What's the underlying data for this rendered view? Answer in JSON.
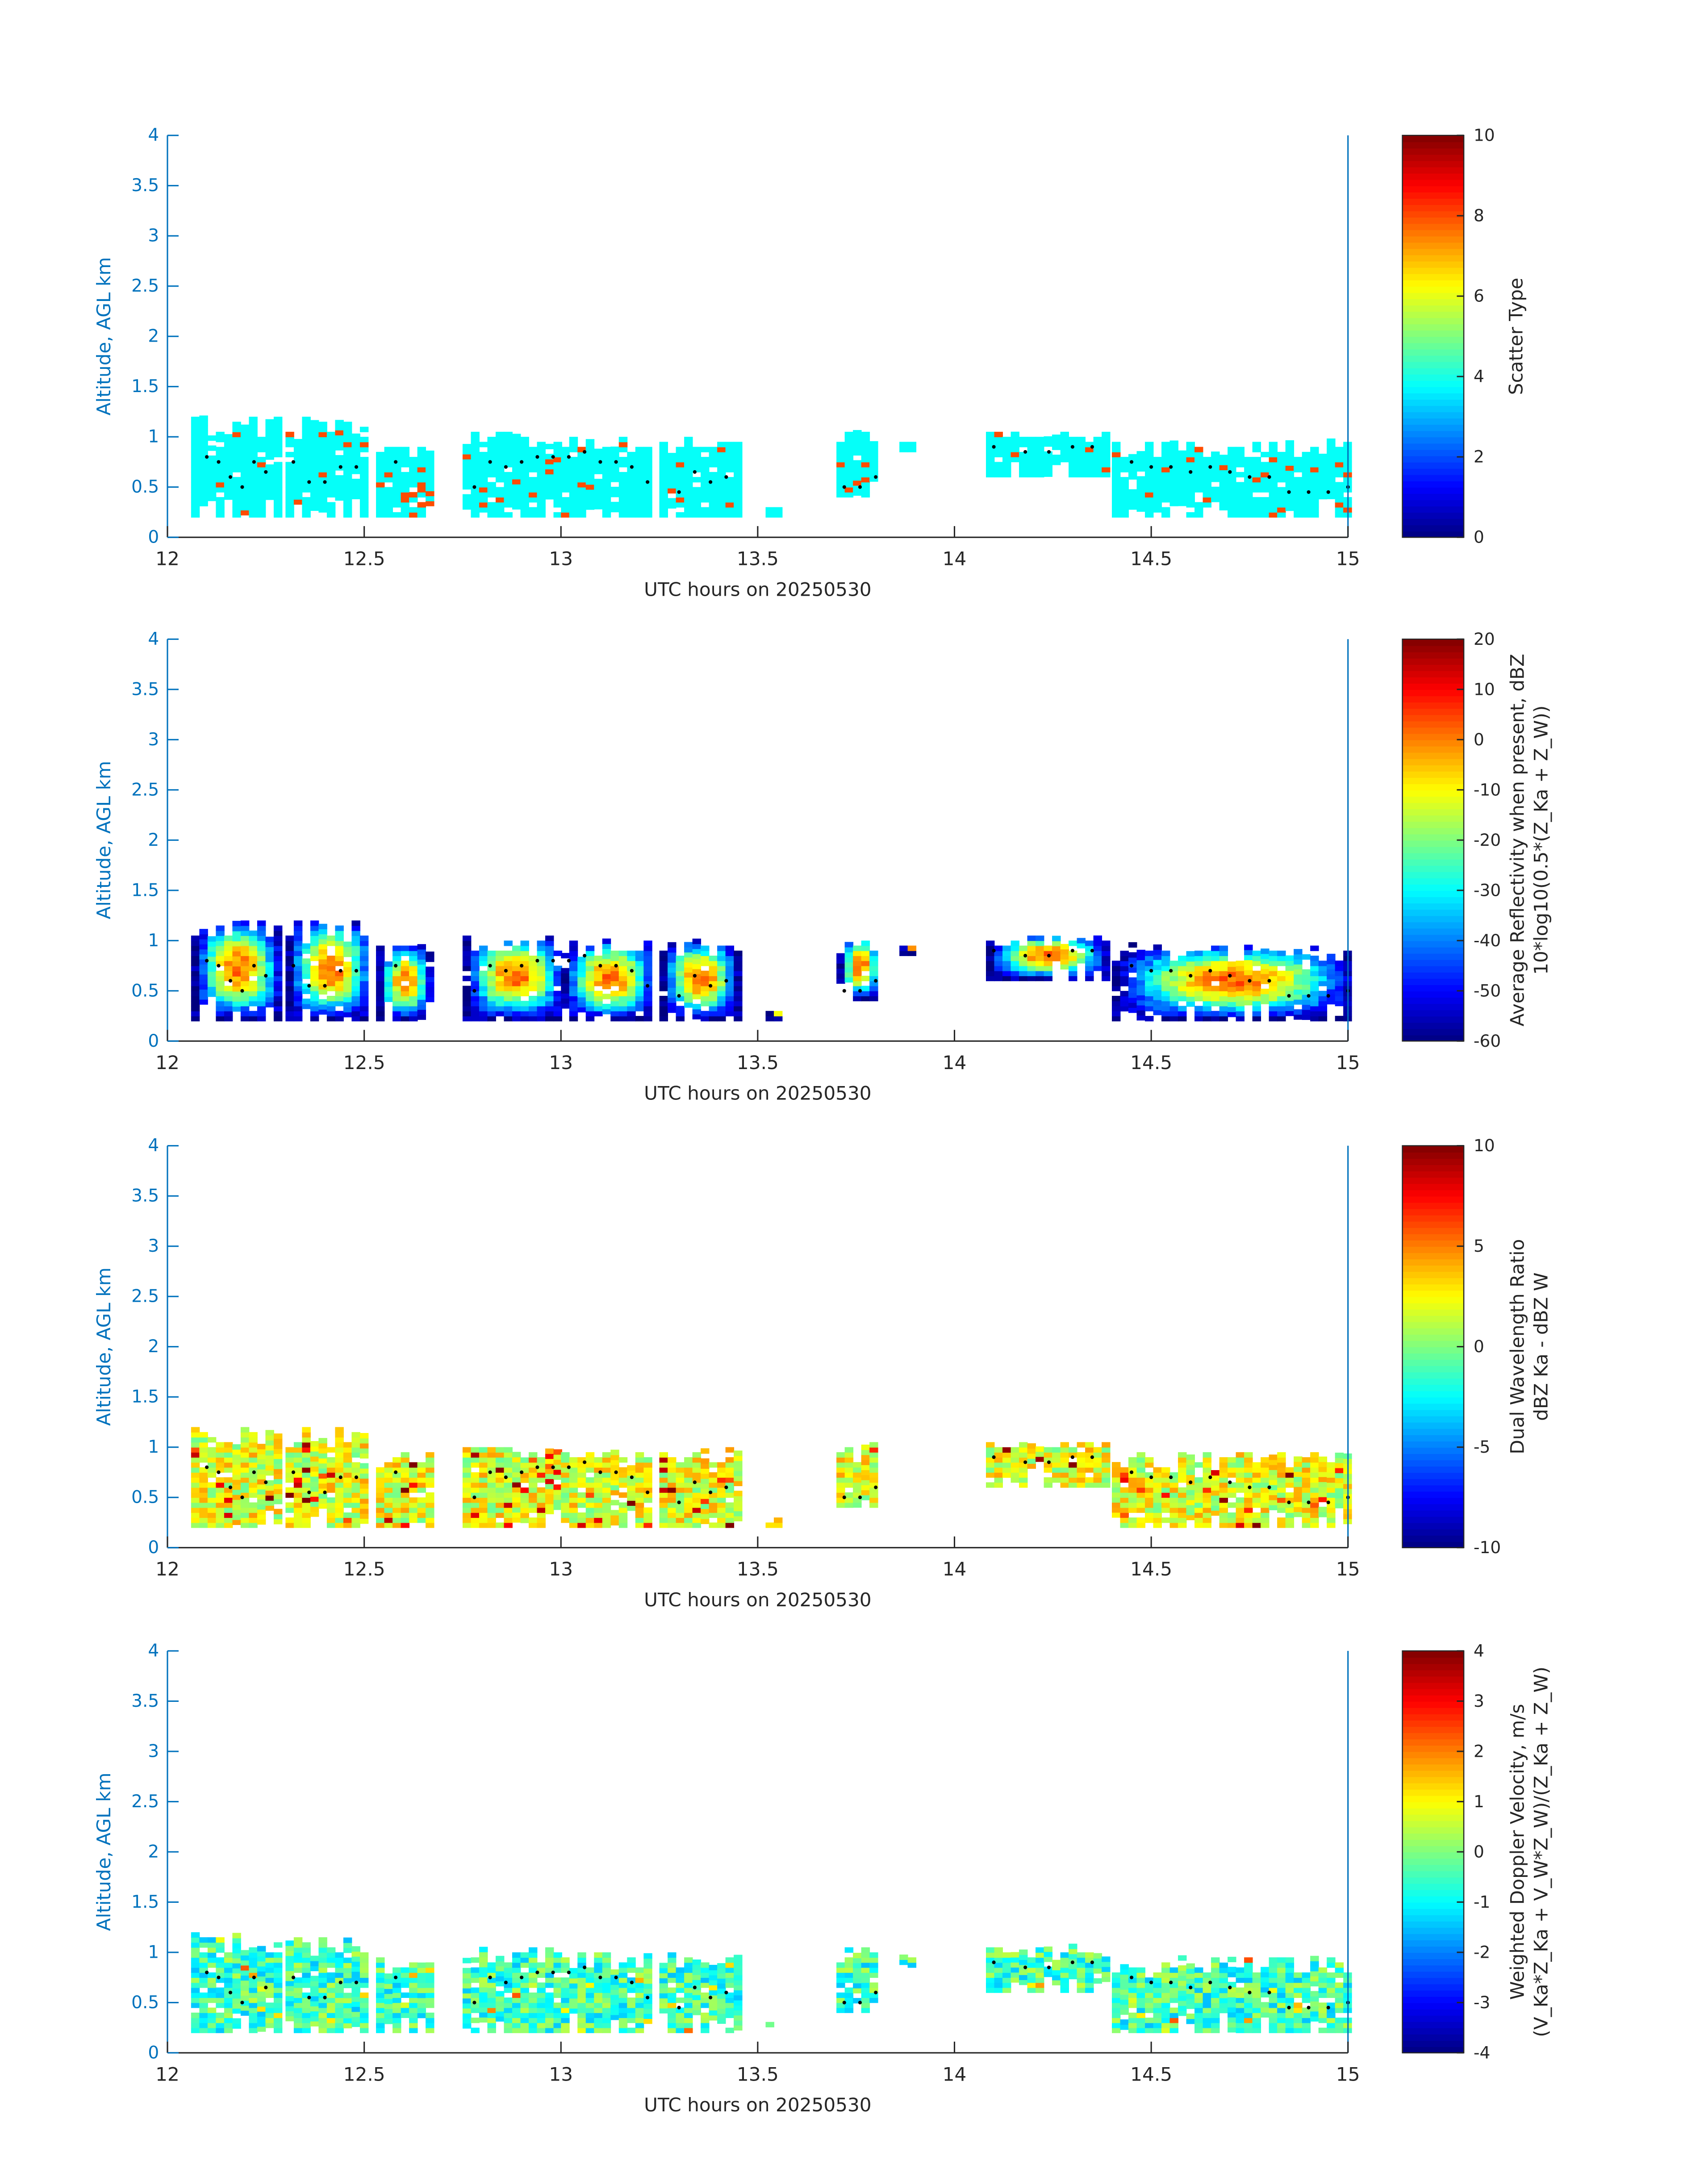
{
  "chart_data": [
    {
      "type": "heatmap",
      "xlabel": "UTC hours on 20250530",
      "ylabel": "Altitude, AGL km",
      "xlim": [
        12,
        15
      ],
      "ylim": [
        0,
        4
      ],
      "xticks": [
        "12",
        "12.5",
        "13",
        "13.5",
        "14",
        "14.5",
        "15"
      ],
      "yticks": [
        "0",
        "0.5",
        "1",
        "1.5",
        "2",
        "2.5",
        "3",
        "3.5",
        "4"
      ],
      "colorbar": {
        "label": [
          "Scatter Type"
        ],
        "clim": [
          0,
          10
        ],
        "ticks": [
          "0",
          "2",
          "4",
          "6",
          "8",
          "10"
        ]
      },
      "field": "scatter",
      "base": 3.8,
      "alt": 8
    },
    {
      "type": "heatmap",
      "xlabel": "UTC hours on 20250530",
      "ylabel": "Altitude, AGL km",
      "xlim": [
        12,
        15
      ],
      "ylim": [
        0,
        4
      ],
      "xticks": [
        "12",
        "12.5",
        "13",
        "13.5",
        "14",
        "14.5",
        "15"
      ],
      "yticks": [
        "0",
        "0.5",
        "1",
        "1.5",
        "2",
        "2.5",
        "3",
        "3.5",
        "4"
      ],
      "colorbar": {
        "label": [
          "Average Reflectivity when present, dBZ",
          "10*log10(0.5*(Z_Ka + Z_W))"
        ],
        "clim": [
          -60,
          20
        ],
        "ticks": [
          "-60",
          "-50",
          "-40",
          "-30",
          "-20",
          "-10",
          "0",
          "10",
          "20"
        ]
      },
      "field": "refl",
      "base": -25,
      "alt": 5
    },
    {
      "type": "heatmap",
      "xlabel": "UTC hours on 20250530",
      "ylabel": "Altitude, AGL km",
      "xlim": [
        12,
        15
      ],
      "ylim": [
        0,
        4
      ],
      "xticks": [
        "12",
        "12.5",
        "13",
        "13.5",
        "14",
        "14.5",
        "15"
      ],
      "yticks": [
        "0",
        "0.5",
        "1",
        "1.5",
        "2",
        "2.5",
        "3",
        "3.5",
        "4"
      ],
      "colorbar": {
        "label": [
          "Dual Wavelength Ratio",
          "dBZ Ka - dBZ W"
        ],
        "clim": [
          -10,
          10
        ],
        "ticks": [
          "-10",
          "-5",
          "0",
          "5",
          "10"
        ]
      },
      "field": "dwr",
      "base": 2,
      "alt": 6
    },
    {
      "type": "heatmap",
      "xlabel": "UTC hours on 20250530",
      "ylabel": "Altitude, AGL km",
      "xlim": [
        12,
        15
      ],
      "ylim": [
        0,
        4
      ],
      "xticks": [
        "12",
        "12.5",
        "13",
        "13.5",
        "14",
        "14.5",
        "15"
      ],
      "yticks": [
        "0",
        "0.5",
        "1",
        "1.5",
        "2",
        "2.5",
        "3",
        "3.5",
        "4"
      ],
      "colorbar": {
        "label": [
          "Weighted Doppler Velocity, m/s",
          "(V_Ka*Z_Ka + V_W*Z_W)/(Z_Ka + Z_W)"
        ],
        "clim": [
          -4,
          4
        ],
        "ticks": [
          "-4",
          "-3",
          "-2",
          "-1",
          "0",
          "1",
          "2",
          "3",
          "4"
        ]
      },
      "field": "vel",
      "base": -0.5,
      "alt": 2
    }
  ],
  "clusters": [
    {
      "t": [
        12.06,
        12.28
      ],
      "z": [
        0.2,
        1.2
      ]
    },
    {
      "t": [
        12.3,
        12.51
      ],
      "z": [
        0.2,
        1.2
      ]
    },
    {
      "t": [
        12.53,
        12.66
      ],
      "z": [
        0.2,
        0.95
      ]
    },
    {
      "t": [
        12.75,
        13.0
      ],
      "z": [
        0.2,
        1.05
      ]
    },
    {
      "t": [
        13.0,
        13.23
      ],
      "z": [
        0.2,
        1.0
      ]
    },
    {
      "t": [
        13.25,
        13.44
      ],
      "z": [
        0.2,
        1.0
      ]
    },
    {
      "t": [
        13.52,
        13.55
      ],
      "z": [
        0.2,
        0.3
      ]
    },
    {
      "t": [
        13.7,
        13.8
      ],
      "z": [
        0.4,
        1.05
      ]
    },
    {
      "t": [
        13.86,
        13.9
      ],
      "z": [
        0.85,
        0.95
      ]
    },
    {
      "t": [
        14.08,
        14.38
      ],
      "z": [
        0.6,
        1.05
      ]
    },
    {
      "t": [
        14.4,
        15.0
      ],
      "z": [
        0.2,
        0.95
      ]
    }
  ],
  "cloud_base": {
    "t": [
      12.1,
      12.13,
      12.16,
      12.19,
      12.22,
      12.25,
      12.32,
      12.36,
      12.4,
      12.44,
      12.48,
      12.58,
      12.78,
      12.82,
      12.86,
      12.9,
      12.94,
      12.98,
      13.02,
      13.06,
      13.1,
      13.14,
      13.18,
      13.22,
      13.3,
      13.34,
      13.38,
      13.42,
      13.72,
      13.76,
      13.8,
      14.1,
      14.18,
      14.24,
      14.3,
      14.35,
      14.45,
      14.5,
      14.55,
      14.6,
      14.65,
      14.7,
      14.75,
      14.8,
      14.85,
      14.9,
      14.95,
      15.0
    ],
    "z": [
      0.8,
      0.75,
      0.6,
      0.5,
      0.75,
      0.65,
      0.75,
      0.55,
      0.55,
      0.7,
      0.7,
      0.75,
      0.5,
      0.75,
      0.7,
      0.75,
      0.8,
      0.8,
      0.8,
      0.85,
      0.75,
      0.75,
      0.7,
      0.55,
      0.45,
      0.65,
      0.55,
      0.6,
      0.5,
      0.5,
      0.6,
      0.9,
      0.85,
      0.85,
      0.9,
      0.9,
      0.75,
      0.7,
      0.7,
      0.65,
      0.7,
      0.65,
      0.6,
      0.6,
      0.45,
      0.45,
      0.45,
      0.5
    ]
  }
}
